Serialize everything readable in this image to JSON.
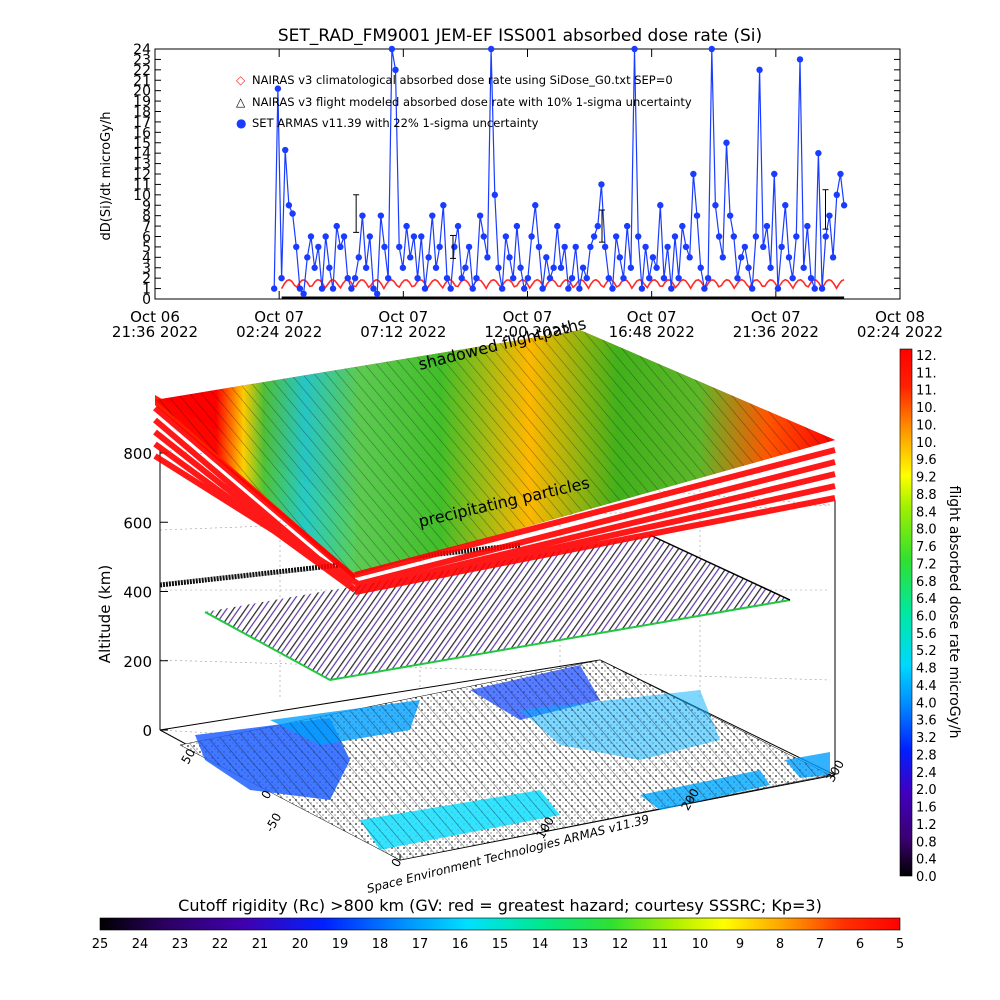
{
  "title": "SET_RAD_FM9001  JEM-EF ISS001 absorbed dose rate (Si)",
  "chart_data": [
    {
      "type": "scatter",
      "ylabel": "dD(Si)/dt microGy/h",
      "ylim": [
        0,
        24
      ],
      "yticks": [
        "0",
        "1",
        "2",
        "3",
        "4",
        "5",
        "6",
        "7",
        "8",
        "9",
        "10",
        "11",
        "12",
        "13",
        "14",
        "15",
        "16",
        "17",
        "18",
        "19",
        "20",
        "21",
        "22",
        "23",
        "24"
      ],
      "xticks": [
        {
          "l1": "Oct 06",
          "l2": "21:36 2022"
        },
        {
          "l1": "Oct 07",
          "l2": "02:24 2022"
        },
        {
          "l1": "Oct 07",
          "l2": "07:12 2022"
        },
        {
          "l1": "Oct 07",
          "l2": "12:00 2022"
        },
        {
          "l1": "Oct 07",
          "l2": "16:48 2022"
        },
        {
          "l1": "Oct 07",
          "l2": "21:36 2022"
        },
        {
          "l1": "Oct 08",
          "l2": "02:24 2022"
        }
      ],
      "legend_position": "top-left",
      "legend": [
        {
          "symbol": "◇",
          "color": "#ff2a2a",
          "label": "NAIRAS v3 climatological absorbed dose rate using SiDose_G0.txt SEP=0"
        },
        {
          "symbol": "△",
          "color": "#000000",
          "label": "NAIRAS v3 flight modeled absorbed dose rate with 10% 1-sigma uncertainty"
        },
        {
          "symbol": "●",
          "color": "#1a3cff",
          "label": "SET ARMAS v11.39 with 22% 1-sigma uncertainty"
        }
      ],
      "series": [
        {
          "name": "SET ARMAS v11.39 with 22% 1-sigma uncertainty",
          "x_fraction_start": 0.16,
          "x_fraction_end": 0.925,
          "values": [
            1,
            20.2,
            2,
            14.3,
            9,
            8.2,
            5,
            1,
            0.5,
            4,
            6,
            3,
            5,
            1,
            6,
            3,
            1,
            7,
            5,
            6,
            2,
            1,
            2,
            4,
            8,
            3,
            6,
            1,
            0.5,
            8,
            5,
            2,
            24,
            22,
            5,
            3,
            7,
            4,
            6,
            2,
            6,
            1,
            4,
            8,
            3,
            5,
            9,
            2,
            1,
            5,
            7,
            2,
            3,
            5,
            1,
            2,
            8,
            6,
            4,
            24,
            10,
            3,
            1,
            6,
            4,
            2,
            7,
            3,
            1,
            2,
            6,
            9,
            5,
            1,
            4,
            2,
            3,
            7,
            3,
            5,
            1,
            2,
            5,
            1,
            3,
            2,
            5,
            6,
            7,
            11,
            5,
            2,
            1,
            6,
            4,
            2,
            7,
            3,
            24,
            6,
            1,
            5,
            2,
            4,
            3,
            9,
            2,
            5,
            1,
            6,
            2,
            7,
            5,
            4,
            12,
            8,
            3,
            1,
            2,
            24,
            9,
            6,
            4,
            15,
            8,
            6,
            2,
            4,
            5,
            3,
            1,
            6,
            22,
            5,
            7,
            3,
            12,
            1,
            5,
            9,
            4,
            2,
            6,
            23,
            3,
            7,
            2,
            1,
            14,
            1,
            6,
            8,
            4,
            10,
            12,
            9
          ]
        },
        {
          "name": "NAIRAS v3 climatological absorbed dose rate using SiDose_G0.txt SEP=0",
          "x_fraction_start": 0.17,
          "x_fraction_end": 0.925,
          "values": []
        },
        {
          "name": "NAIRAS v3 flight modeled absorbed dose rate with 10% 1-sigma uncertainty",
          "x_fraction_start": 0.17,
          "x_fraction_end": 0.925,
          "values": []
        }
      ]
    },
    {
      "type": "heatmap",
      "zlabel": "Altitude (km)",
      "zticks": [
        "0",
        "200",
        "400",
        "600",
        "800"
      ],
      "lat_ticks": [
        "-50",
        "0",
        "50"
      ],
      "lon_ticks": [
        "0",
        "100",
        "200",
        "300"
      ],
      "colorbar_label": "flight absorbed dose rate microGy/h",
      "colorbar_ticks": [
        "12.",
        "11.",
        "11.",
        "10.",
        "10.",
        "10.",
        "9.6",
        "9.2",
        "8.8",
        "8.4",
        "8.0",
        "7.6",
        "7.2",
        "6.8",
        "6.4",
        "6.0",
        "5.6",
        "5.2",
        "4.8",
        "4.4",
        "4.0",
        "3.6",
        "3.2",
        "2.8",
        "2.4",
        "2.0",
        "1.6",
        "1.2",
        "0.8",
        "0.4",
        "0.0"
      ],
      "annotations": [
        "shadowed flightpaths",
        "precipitating particles"
      ],
      "credit": "Space Environment Technologies ARMAS v11.39"
    },
    {
      "type": "heatmap",
      "title": "Cutoff rigidity (Rc) >800 km (GV: red = greatest hazard; courtesy SSSRC; Kp=3)",
      "colorbar_ticks": [
        "25",
        "24",
        "23",
        "22",
        "21",
        "20",
        "19",
        "18",
        "17",
        "16",
        "15",
        "14",
        "13",
        "12",
        "11",
        "10",
        "9",
        "8",
        "7",
        "6",
        "5"
      ]
    }
  ],
  "colors": {
    "armas": "#1a3cff",
    "nairas_clim": "#ff2a2a",
    "nairas_flight": "#000000",
    "hot": "#ff0000",
    "cold": "#00ffff"
  }
}
